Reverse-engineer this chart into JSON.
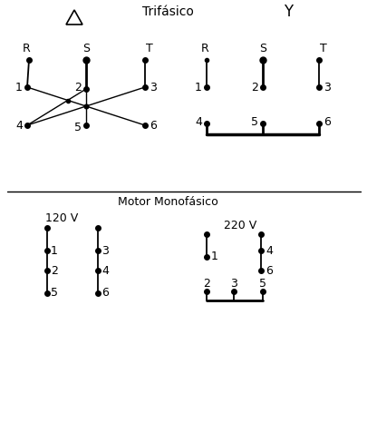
{
  "bg": "#ffffff",
  "tc": "#000000",
  "title": "Trifásico",
  "motor_title": "Motor Monofásico",
  "v120": "120 V",
  "v220": "220 V"
}
